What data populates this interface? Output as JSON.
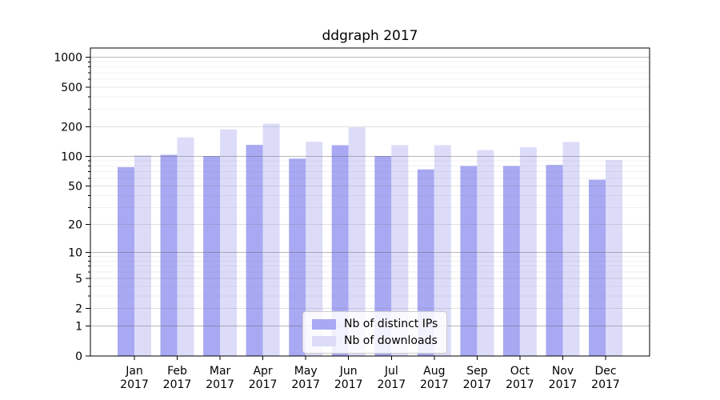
{
  "title": "ddgraph 2017",
  "chart_data": {
    "type": "bar",
    "title": "ddgraph 2017",
    "x_months": [
      "Jan",
      "Feb",
      "Mar",
      "Apr",
      "May",
      "Jun",
      "Jul",
      "Aug",
      "Sep",
      "Oct",
      "Nov",
      "Dec"
    ],
    "x_year": "2017",
    "series": [
      {
        "name": "Nb of distinct IPs",
        "color": "#a8a8f3",
        "values": [
          78,
          104,
          101,
          131,
          95,
          130,
          101,
          74,
          80,
          80,
          82,
          58
        ]
      },
      {
        "name": "Nb of downloads",
        "color": "#dcdcf9",
        "values": [
          103,
          156,
          188,
          214,
          141,
          197,
          130,
          130,
          116,
          124,
          140,
          92
        ]
      }
    ],
    "yscale": "log1p",
    "ylim": [
      0,
      1240
    ],
    "y_ticks_labeled": [
      0,
      1,
      2,
      5,
      10,
      20,
      50,
      100,
      200,
      500,
      1000
    ],
    "y_ticks_power10": [
      1,
      10,
      100,
      1000
    ],
    "y_ticks_minor": [
      3,
      4,
      6,
      7,
      8,
      9,
      30,
      40,
      60,
      70,
      80,
      90,
      300,
      400,
      600,
      700,
      800,
      900
    ],
    "grid": "on",
    "legend_position": "lower center",
    "xlabel": "",
    "ylabel": ""
  },
  "colors": {
    "background": "#ffffff",
    "bar_distinct_ips": "#a8a8f3",
    "bar_downloads": "#dcdcf9",
    "grid_major": "rgba(100,100,100,0.45)",
    "grid_mid": "rgba(120,120,120,0.22)",
    "grid_minor": "rgba(130,130,130,0.11)",
    "axis": "#000000"
  }
}
